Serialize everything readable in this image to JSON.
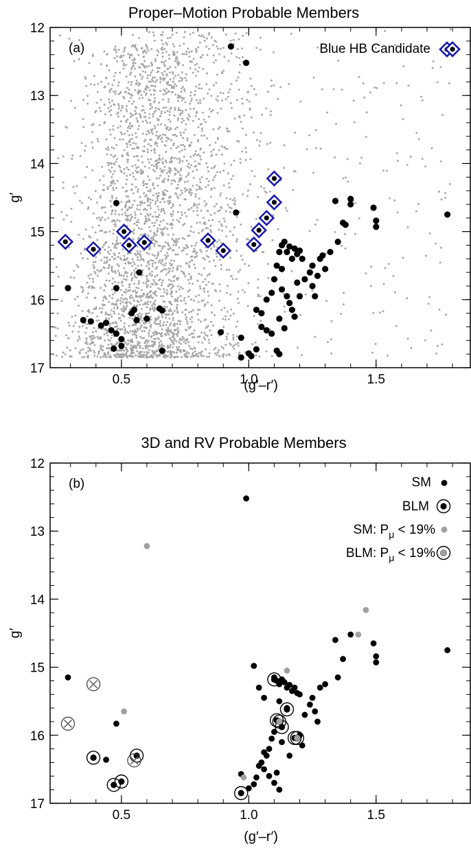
{
  "chart_data": [
    {
      "type": "scatter",
      "title": "Proper–Motion Probable Members",
      "panel_label": "(a)",
      "xlabel": "(g′–r′)",
      "ylabel": "g′",
      "xlim": [
        0.22,
        1.87
      ],
      "ylim": [
        17,
        12
      ],
      "y_inverted": true,
      "xticks": [
        "0.5",
        "1.0",
        "1.5"
      ],
      "yticks": [
        "12",
        "13",
        "14",
        "15",
        "16",
        "17"
      ],
      "legend": {
        "position": "top-right",
        "entries": [
          "Blue HB Candidate"
        ]
      },
      "series": [
        {
          "name": "Blue HB Candidate",
          "marker": "diamond",
          "color": "#1a1aa8",
          "points": [
            [
              0.28,
              15.15
            ],
            [
              0.39,
              15.26
            ],
            [
              0.51,
              15.0
            ],
            [
              0.53,
              15.2
            ],
            [
              0.59,
              15.16
            ],
            [
              0.84,
              15.13
            ],
            [
              0.9,
              15.28
            ],
            [
              1.02,
              15.19
            ],
            [
              1.04,
              14.98
            ],
            [
              1.07,
              14.8
            ],
            [
              1.1,
              14.57
            ],
            [
              1.1,
              14.22
            ],
            [
              1.8,
              12.32
            ]
          ]
        },
        {
          "marker": "dot",
          "color": "#000000",
          "points": [
            [
              0.93,
              12.28
            ],
            [
              0.99,
              12.52
            ],
            [
              0.48,
              14.58
            ],
            [
              0.95,
              14.72
            ],
            [
              0.29,
              15.83
            ],
            [
              0.48,
              15.83
            ],
            [
              0.57,
              15.6
            ],
            [
              0.35,
              16.3
            ],
            [
              0.38,
              16.32
            ],
            [
              0.42,
              16.38
            ],
            [
              0.44,
              16.34
            ],
            [
              0.46,
              16.45
            ],
            [
              0.48,
              16.5
            ],
            [
              0.5,
              16.58
            ],
            [
              0.47,
              16.72
            ],
            [
              0.5,
              16.68
            ],
            [
              0.54,
              16.2
            ],
            [
              0.55,
              16.15
            ],
            [
              0.56,
              16.3
            ],
            [
              0.6,
              16.28
            ],
            [
              0.65,
              16.13
            ],
            [
              0.66,
              16.16
            ],
            [
              0.66,
              16.75
            ],
            [
              0.89,
              16.48
            ],
            [
              0.97,
              16.56
            ],
            [
              0.97,
              16.85
            ],
            [
              1.0,
              16.79
            ],
            [
              1.01,
              16.83
            ],
            [
              1.03,
              16.73
            ],
            [
              1.05,
              16.4
            ],
            [
              1.07,
              16.45
            ],
            [
              1.09,
              16.5
            ],
            [
              1.11,
              16.75
            ],
            [
              1.12,
              16.8
            ],
            [
              1.03,
              16.15
            ],
            [
              1.05,
              16.2
            ],
            [
              1.07,
              16.0
            ],
            [
              1.09,
              15.9
            ],
            [
              1.1,
              15.7
            ],
            [
              1.11,
              15.5
            ],
            [
              1.12,
              15.3
            ],
            [
              1.13,
              15.2
            ],
            [
              1.14,
              15.15
            ],
            [
              1.15,
              15.3
            ],
            [
              1.16,
              15.22
            ],
            [
              1.17,
              15.4
            ],
            [
              1.18,
              15.25
            ],
            [
              1.19,
              15.33
            ],
            [
              1.2,
              15.28
            ],
            [
              1.21,
              15.4
            ],
            [
              1.13,
              15.85
            ],
            [
              1.15,
              15.95
            ],
            [
              1.16,
              16.05
            ],
            [
              1.17,
              16.15
            ],
            [
              1.18,
              16.25
            ],
            [
              1.19,
              15.75
            ],
            [
              1.22,
              15.7
            ],
            [
              1.24,
              15.6
            ],
            [
              1.25,
              15.5
            ],
            [
              1.27,
              15.65
            ],
            [
              1.28,
              15.4
            ],
            [
              1.29,
              15.35
            ],
            [
              1.3,
              15.55
            ],
            [
              1.32,
              15.3
            ],
            [
              1.34,
              14.55
            ],
            [
              1.35,
              15.15
            ],
            [
              1.37,
              14.87
            ],
            [
              1.38,
              14.9
            ],
            [
              1.4,
              14.52
            ],
            [
              1.4,
              14.6
            ],
            [
              1.49,
              14.65
            ],
            [
              1.5,
              14.84
            ],
            [
              1.5,
              14.93
            ],
            [
              1.78,
              14.75
            ],
            [
              1.12,
              16.28
            ],
            [
              1.13,
              15.55
            ],
            [
              1.2,
              15.95
            ],
            [
              1.25,
              15.8
            ],
            [
              1.26,
              15.95
            ],
            [
              1.14,
              16.42
            ]
          ]
        },
        {
          "name": "",
          "marker": "small-dot",
          "color": "#a8a8a8",
          "description_only": "dense field of proper-motion non-member stars, x 0.23-1.82, y 12-16.85"
        }
      ]
    },
    {
      "type": "scatter",
      "title": "3D and RV Probable Members",
      "panel_label": "(b)",
      "xlabel": "(g′–r′)",
      "ylabel": "g′",
      "xlim": [
        0.22,
        1.87
      ],
      "ylim": [
        17,
        12
      ],
      "y_inverted": true,
      "xticks": [
        "0.5",
        "1.0",
        "1.5"
      ],
      "yticks": [
        "12",
        "13",
        "14",
        "15",
        "16",
        "17"
      ],
      "legend": {
        "position": "top-right",
        "entries": [
          "SM",
          "BLM",
          "SM: P",
          "BLM: P"
        ],
        "subscript": "μ",
        "suffix": " < 19%"
      },
      "series": [
        {
          "name": "SM",
          "marker": "dot",
          "color": "#000000",
          "points": [
            [
              0.99,
              12.52
            ],
            [
              0.29,
              15.15
            ],
            [
              0.48,
              15.83
            ],
            [
              0.44,
              16.36
            ],
            [
              0.97,
              16.57
            ],
            [
              1.0,
              16.78
            ],
            [
              1.02,
              16.72
            ],
            [
              1.03,
              16.62
            ],
            [
              1.04,
              16.45
            ],
            [
              1.05,
              16.4
            ],
            [
              1.06,
              16.5
            ],
            [
              1.07,
              16.3
            ],
            [
              1.08,
              16.2
            ],
            [
              1.08,
              16.6
            ],
            [
              1.09,
              16.05
            ],
            [
              1.1,
              15.95
            ],
            [
              1.1,
              16.7
            ],
            [
              1.11,
              16.55
            ],
            [
              1.12,
              16.8
            ],
            [
              1.12,
              15.5
            ],
            [
              1.02,
              14.98
            ],
            [
              1.04,
              15.3
            ],
            [
              1.06,
              15.45
            ],
            [
              1.1,
              15.15
            ],
            [
              1.11,
              15.2
            ],
            [
              1.12,
              15.25
            ],
            [
              1.13,
              15.18
            ],
            [
              1.14,
              15.22
            ],
            [
              1.15,
              15.3
            ],
            [
              1.16,
              15.26
            ],
            [
              1.17,
              15.35
            ],
            [
              1.18,
              15.3
            ],
            [
              1.19,
              15.38
            ],
            [
              1.2,
              15.4
            ],
            [
              1.13,
              16.1
            ],
            [
              1.16,
              16.3
            ],
            [
              1.2,
              16.0
            ],
            [
              1.21,
              16.15
            ],
            [
              1.22,
              15.7
            ],
            [
              1.24,
              15.55
            ],
            [
              1.25,
              15.45
            ],
            [
              1.26,
              15.65
            ],
            [
              1.27,
              15.8
            ],
            [
              1.28,
              15.3
            ],
            [
              1.3,
              15.25
            ],
            [
              1.34,
              14.6
            ],
            [
              1.35,
              15.15
            ],
            [
              1.37,
              14.88
            ],
            [
              1.4,
              14.52
            ],
            [
              1.49,
              14.65
            ],
            [
              1.5,
              14.84
            ],
            [
              1.5,
              14.93
            ],
            [
              1.78,
              14.75
            ],
            [
              1.15,
              15.6
            ],
            [
              1.06,
              16.25
            ]
          ]
        },
        {
          "name": "BLM",
          "marker": "ringed-dot",
          "color": "#000000",
          "points": [
            [
              0.39,
              16.33
            ],
            [
              0.47,
              16.73
            ],
            [
              0.5,
              16.68
            ],
            [
              0.56,
              16.3
            ],
            [
              0.97,
              16.85
            ],
            [
              1.1,
              15.18
            ],
            [
              1.11,
              15.78
            ],
            [
              1.13,
              15.88
            ],
            [
              1.15,
              15.62
            ],
            [
              1.18,
              16.04
            ]
          ]
        },
        {
          "name": "SM: Pμ < 19%",
          "marker": "dot",
          "color": "#a0a0a0",
          "points": [
            [
              0.6,
              13.22
            ],
            [
              0.51,
              15.65
            ],
            [
              0.98,
              16.62
            ],
            [
              1.15,
              15.05
            ],
            [
              1.43,
              14.52
            ],
            [
              1.46,
              14.16
            ],
            [
              1.19,
              16.05
            ]
          ]
        },
        {
          "name": "BLM: Pμ < 19%",
          "marker": "ringed-dot",
          "color": "#a0a0a0",
          "points": [
            [
              1.12,
              15.8
            ],
            [
              1.19,
              16.04
            ]
          ]
        },
        {
          "name": "",
          "marker": "ringed-cross",
          "color": "#808080",
          "points": [
            [
              0.39,
              15.25
            ],
            [
              0.29,
              15.83
            ],
            [
              0.55,
              16.37
            ]
          ]
        }
      ]
    }
  ]
}
